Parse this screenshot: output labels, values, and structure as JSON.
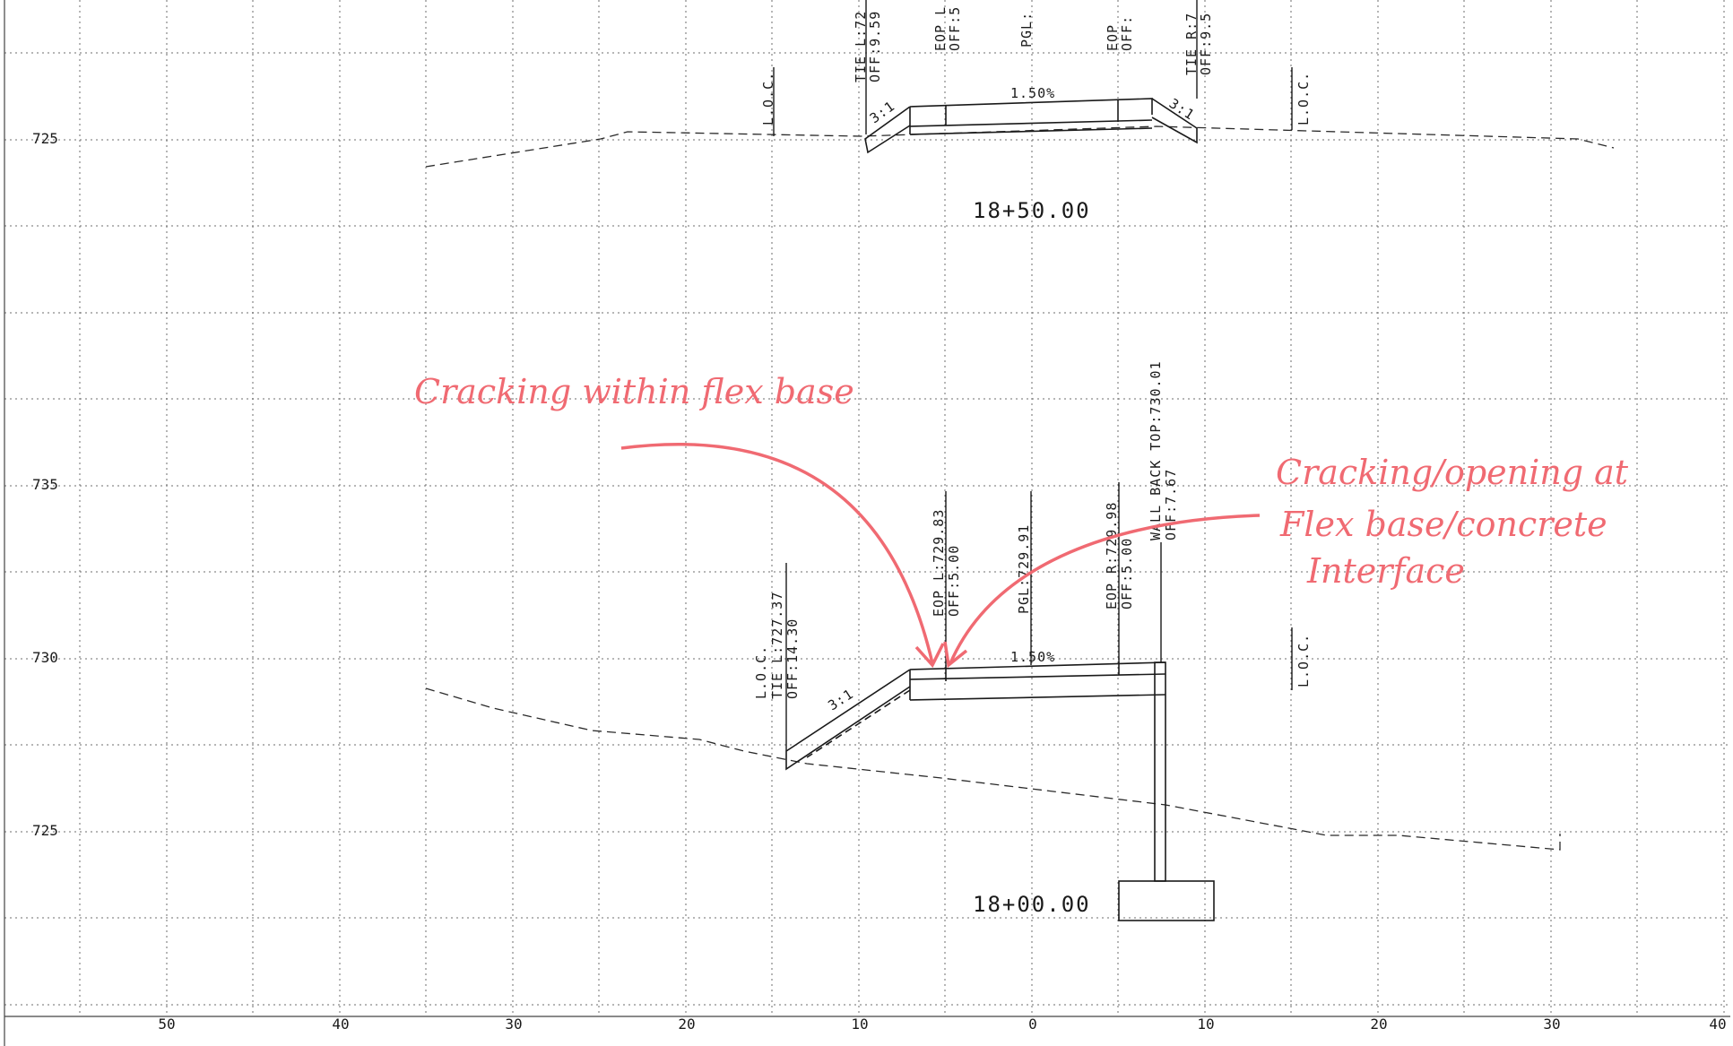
{
  "elevations": {
    "upper_725": "725",
    "e735": "735",
    "e730": "730",
    "lower_725": "725"
  },
  "x_axis_ticks": [
    "50",
    "40",
    "30",
    "20",
    "10",
    "0",
    "10",
    "20",
    "30",
    "40"
  ],
  "upper_section": {
    "station": "18+50.00",
    "slope": "1.50%",
    "left_side_slope": "3:1",
    "right_side_slope": "3:1",
    "loc_left": "L.O.C.",
    "loc_right": "L.O.C.",
    "tie_left": "TIE L:72",
    "tie_left_off": "OFF:9.59",
    "eop_left": "EOP L",
    "eop_left_off": "OFF:5",
    "pgl": "PGL:",
    "eop_right": "EOP",
    "eop_right_off": "OFF:",
    "tie_right": "TIE R:7",
    "tie_right_off": "OFF:9.5"
  },
  "lower_section": {
    "station": "18+00.00",
    "slope": "1.50%",
    "left_side_slope": "3:1",
    "loc_left": "L.O.C.",
    "tie_left": "TIE L:727.37",
    "tie_left_off": "OFF:14.30",
    "eop_left": "EOP L:729.83",
    "eop_left_off": "OFF:5.00",
    "pgl": "PGL:729.91",
    "eop_right": "EOP R:729.98",
    "eop_right_off": "OFF:5.00",
    "wall": "WALL BACK TOP:730.01",
    "wall_off": "OFF:7.67",
    "loc_right": "L.O.C."
  },
  "annotations": {
    "note1": "Cracking within flex base",
    "note2_line1": "Cracking/opening at",
    "note2_line2": "Flex base/concrete",
    "note2_line3": "Interface",
    "color": "#f06a72"
  }
}
